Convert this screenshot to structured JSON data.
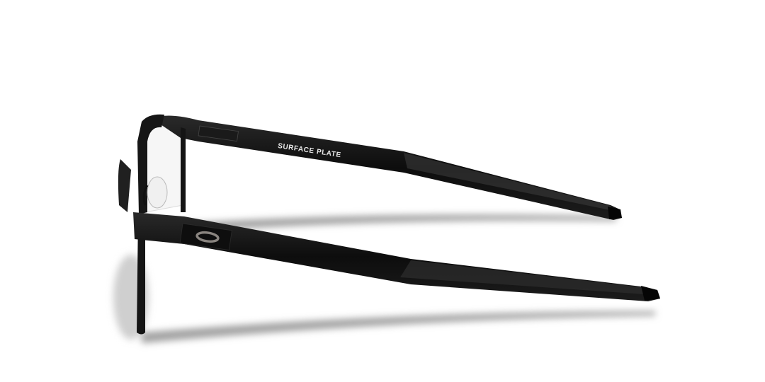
{
  "product": {
    "temple_engraving": "SURFACE PLATE",
    "logo": "oakley-ellipse-logo",
    "colors": {
      "frame": "#111111",
      "logo": "#8a8580",
      "background": "#ffffff"
    }
  }
}
